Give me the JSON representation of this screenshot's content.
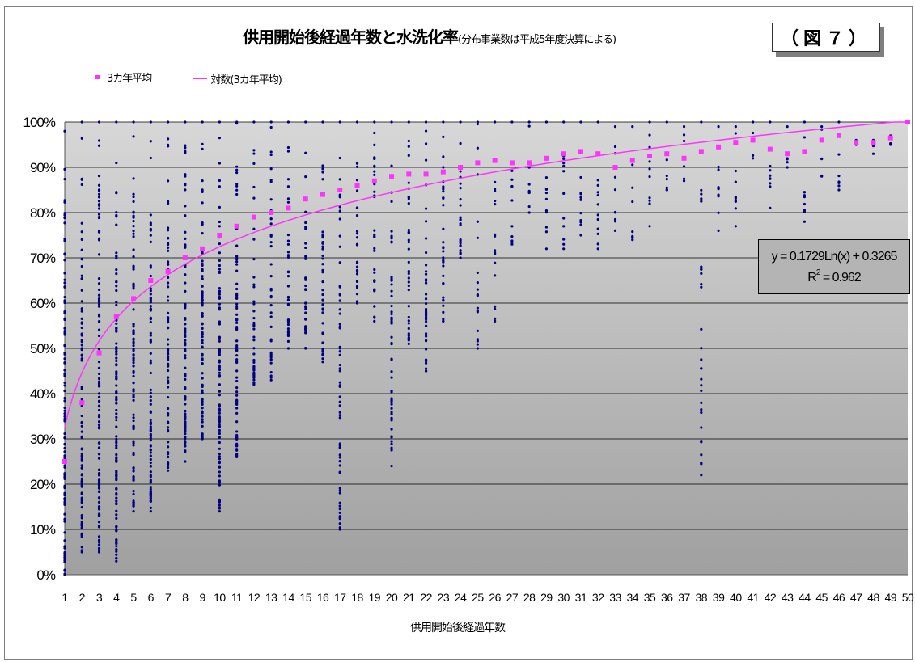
{
  "title": "供用開始後経過年数と水洗化率",
  "subtitle": "(分布事業数は平成5年度決算による)",
  "figure_label": "（図７）",
  "legend": {
    "avg_label": "3カ年平均",
    "log_label": "対数(3カ年平均)"
  },
  "equation": {
    "line1": "y = 0.1729Ln(x) + 0.3265",
    "r2_prefix": "R",
    "r2_sup": "2",
    "r2_value": " = 0.962"
  },
  "colors": {
    "plot_bg_top": "#d7d7d7",
    "plot_bg_bottom": "#a0a0a0",
    "scatter": "#000080",
    "average": "#ff33ff",
    "trend": "#ff33ff"
  },
  "chart_data": {
    "type": "scatter",
    "xlabel": "供用開始後経過年数",
    "ylabel": "",
    "x_categories": [
      1,
      2,
      3,
      4,
      5,
      6,
      7,
      8,
      9,
      10,
      11,
      12,
      13,
      14,
      15,
      16,
      17,
      18,
      19,
      20,
      21,
      22,
      23,
      24,
      25,
      26,
      27,
      28,
      29,
      30,
      31,
      32,
      33,
      34,
      35,
      36,
      37,
      38,
      39,
      40,
      41,
      42,
      43,
      44,
      45,
      46,
      47,
      48,
      49,
      50
    ],
    "xlim": [
      1,
      50
    ],
    "ylim": [
      0,
      1
    ],
    "y_ticks": [
      "0%",
      "10%",
      "20%",
      "30%",
      "40%",
      "50%",
      "60%",
      "70%",
      "80%",
      "90%",
      "100%"
    ],
    "grid": true,
    "series": [
      {
        "name": "3カ年平均",
        "marker": "square",
        "x": [
          1,
          2,
          3,
          4,
          5,
          6,
          7,
          8,
          9,
          10,
          11,
          12,
          13,
          14,
          15,
          16,
          17,
          18,
          19,
          20,
          21,
          22,
          23,
          24,
          25,
          26,
          27,
          28,
          29,
          30,
          31,
          32,
          33,
          34,
          35,
          36,
          37,
          38,
          39,
          40,
          41,
          42,
          43,
          44,
          45,
          46,
          47,
          48,
          49,
          50
        ],
        "y": [
          0.25,
          0.38,
          0.49,
          0.57,
          0.61,
          0.65,
          0.67,
          0.7,
          0.72,
          0.75,
          0.77,
          0.79,
          0.8,
          0.81,
          0.83,
          0.84,
          0.85,
          0.86,
          0.87,
          0.88,
          0.885,
          0.885,
          0.89,
          0.9,
          0.91,
          0.915,
          0.91,
          0.91,
          0.92,
          0.93,
          0.935,
          0.93,
          0.9,
          0.915,
          0.925,
          0.93,
          0.92,
          0.935,
          0.945,
          0.955,
          0.96,
          0.94,
          0.93,
          0.935,
          0.96,
          0.97,
          0.955,
          0.955,
          0.965,
          1.0
        ]
      },
      {
        "name": "対数(3カ年平均)",
        "type": "log_trendline",
        "a": 0.1729,
        "b": 0.3265
      }
    ],
    "scatter_ranges": [
      {
        "x": 1,
        "min": 0.0,
        "max": 0.98
      },
      {
        "x": 2,
        "min": 0.05,
        "max": 1.0
      },
      {
        "x": 3,
        "min": 0.05,
        "max": 1.0
      },
      {
        "x": 4,
        "min": 0.03,
        "max": 1.0
      },
      {
        "x": 5,
        "min": 0.14,
        "max": 1.0
      },
      {
        "x": 6,
        "min": 0.14,
        "max": 1.0
      },
      {
        "x": 7,
        "min": 0.23,
        "max": 1.0
      },
      {
        "x": 8,
        "min": 0.25,
        "max": 1.0
      },
      {
        "x": 9,
        "min": 0.3,
        "max": 1.0
      },
      {
        "x": 10,
        "min": 0.14,
        "max": 1.0
      },
      {
        "x": 11,
        "min": 0.26,
        "max": 1.0
      },
      {
        "x": 12,
        "min": 0.42,
        "max": 1.0
      },
      {
        "x": 13,
        "min": 0.43,
        "max": 1.0
      },
      {
        "x": 14,
        "min": 0.5,
        "max": 1.0
      },
      {
        "x": 15,
        "min": 0.5,
        "max": 1.0
      },
      {
        "x": 16,
        "min": 0.47,
        "max": 1.0
      },
      {
        "x": 17,
        "min": 0.1,
        "max": 1.0
      },
      {
        "x": 18,
        "min": 0.6,
        "max": 1.0
      },
      {
        "x": 19,
        "min": 0.56,
        "max": 1.0
      },
      {
        "x": 20,
        "min": 0.24,
        "max": 1.0
      },
      {
        "x": 21,
        "min": 0.51,
        "max": 1.0
      },
      {
        "x": 22,
        "min": 0.45,
        "max": 1.0
      },
      {
        "x": 23,
        "min": 0.56,
        "max": 1.0
      },
      {
        "x": 24,
        "min": 0.7,
        "max": 1.0
      },
      {
        "x": 25,
        "min": 0.5,
        "max": 1.0
      },
      {
        "x": 26,
        "min": 0.56,
        "max": 1.0
      },
      {
        "x": 27,
        "min": 0.73,
        "max": 1.0
      },
      {
        "x": 28,
        "min": 0.8,
        "max": 1.0
      },
      {
        "x": 29,
        "min": 0.72,
        "max": 1.0
      },
      {
        "x": 30,
        "min": 0.72,
        "max": 1.0
      },
      {
        "x": 31,
        "min": 0.75,
        "max": 1.0
      },
      {
        "x": 32,
        "min": 0.72,
        "max": 1.0
      },
      {
        "x": 33,
        "min": 0.76,
        "max": 0.99
      },
      {
        "x": 34,
        "min": 0.74,
        "max": 0.99
      },
      {
        "x": 35,
        "min": 0.77,
        "max": 1.0
      },
      {
        "x": 36,
        "min": 0.85,
        "max": 1.0
      },
      {
        "x": 37,
        "min": 0.87,
        "max": 0.99
      },
      {
        "x": 38,
        "min": 0.22,
        "max": 1.0
      },
      {
        "x": 39,
        "min": 0.76,
        "max": 0.99
      },
      {
        "x": 40,
        "min": 0.77,
        "max": 0.99
      },
      {
        "x": 41,
        "min": 0.92,
        "max": 1.0
      },
      {
        "x": 42,
        "min": 0.81,
        "max": 1.0
      },
      {
        "x": 43,
        "min": 0.9,
        "max": 0.99
      },
      {
        "x": 44,
        "min": 0.78,
        "max": 1.0
      },
      {
        "x": 45,
        "min": 0.88,
        "max": 0.99
      },
      {
        "x": 46,
        "min": 0.85,
        "max": 1.0
      },
      {
        "x": 47,
        "min": 0.95,
        "max": 0.96
      },
      {
        "x": 48,
        "min": 0.93,
        "max": 0.96
      },
      {
        "x": 49,
        "min": 0.95,
        "max": 0.97
      },
      {
        "x": 50,
        "min": 1.0,
        "max": 1.0
      }
    ]
  }
}
